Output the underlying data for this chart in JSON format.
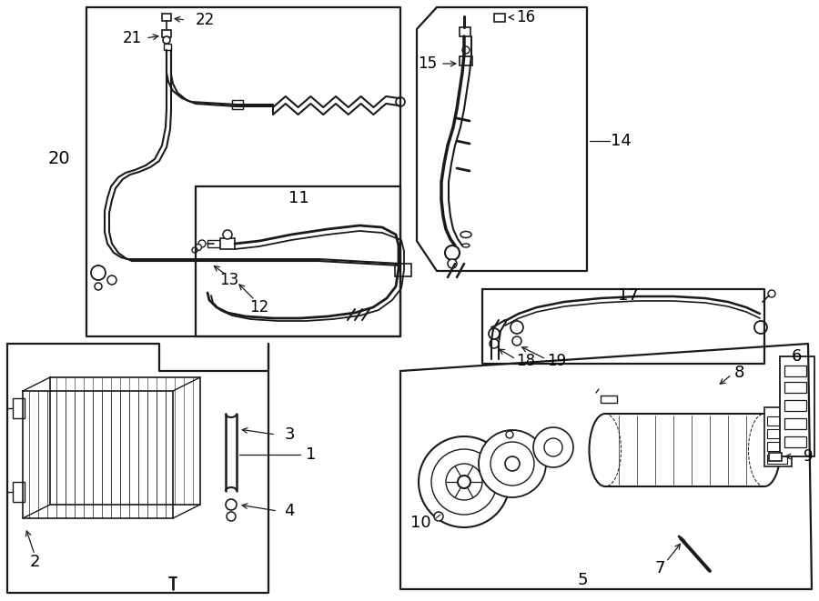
{
  "bg": "#ffffff",
  "lc": "#1a1a1a",
  "lw": 1.4,
  "fig_w": 9.0,
  "fig_h": 6.61,
  "dpi": 100
}
